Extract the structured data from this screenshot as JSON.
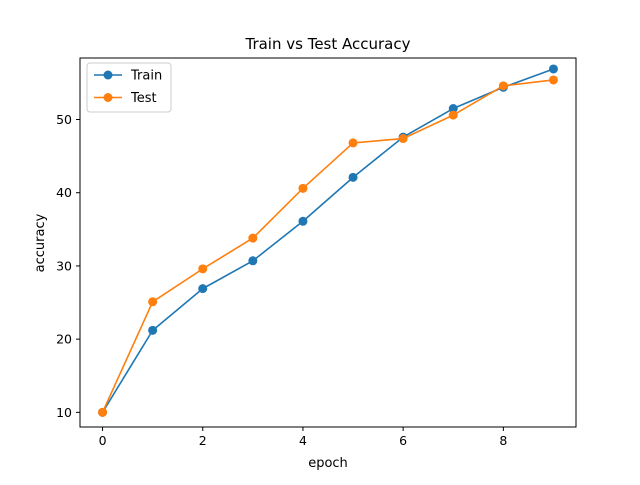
{
  "chart_data": {
    "type": "line",
    "title": "Train vs Test Accuracy",
    "xlabel": "epoch",
    "ylabel": "accuracy",
    "x": [
      0,
      1,
      2,
      3,
      4,
      5,
      6,
      7,
      8,
      9
    ],
    "xlim": [
      -0.45,
      9.45
    ],
    "ylim": [
      8.0,
      58.4
    ],
    "xticks": [
      0,
      2,
      4,
      6,
      8
    ],
    "yticks": [
      10,
      20,
      30,
      40,
      50
    ],
    "grid": false,
    "legend_position": "top-left",
    "series": [
      {
        "name": "Train",
        "color": "#1f77b4",
        "marker": "circle",
        "values": [
          10.0,
          21.2,
          26.9,
          30.7,
          36.1,
          42.1,
          47.6,
          51.5,
          54.4,
          56.9
        ]
      },
      {
        "name": "Test",
        "color": "#ff7f0e",
        "marker": "circle",
        "values": [
          10.0,
          25.1,
          29.6,
          33.8,
          40.6,
          46.8,
          47.4,
          50.6,
          54.6,
          55.4
        ]
      }
    ]
  }
}
